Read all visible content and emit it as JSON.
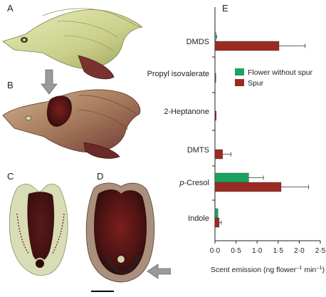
{
  "panels": {
    "a": "A",
    "b": "B",
    "c": "C",
    "d": "D",
    "e": "E"
  },
  "colors": {
    "without_spur": "#1aa35c",
    "spur": "#9b2a22",
    "axis": "#222222"
  },
  "chart_data": {
    "type": "bar",
    "orientation": "horizontal",
    "categories": [
      "DMDS",
      "Propyl isovalerate",
      "2-Heptanone",
      "DMTS",
      "p-Cresol",
      "Indole"
    ],
    "category_labels": [
      {
        "italic": "",
        "text": "DMDS"
      },
      {
        "italic": "",
        "text": "Propyl isovalerate"
      },
      {
        "italic": "",
        "text": "2-Heptanone"
      },
      {
        "italic": "",
        "text": "DMTS"
      },
      {
        "italic": "p",
        "text": "-Cresol"
      },
      {
        "italic": "",
        "text": "Indole"
      }
    ],
    "series": [
      {
        "name": "Flower without spur",
        "color": "#1aa35c",
        "values": [
          0.02,
          0.0,
          0.0,
          0.0,
          0.8,
          0.07
        ],
        "errors": [
          0.02,
          0.0,
          0.0,
          0.0,
          0.35,
          0.0
        ]
      },
      {
        "name": "Spur",
        "color": "#9b2a22",
        "values": [
          1.52,
          0.02,
          0.03,
          0.18,
          1.57,
          0.1
        ],
        "errors": [
          0.62,
          0.0,
          0.0,
          0.2,
          0.65,
          0.05
        ]
      }
    ],
    "xlim": [
      0,
      2.5
    ],
    "xticks": [
      0,
      0.5,
      1.0,
      1.5,
      2.0,
      2.5
    ],
    "xtick_labels": [
      "0·0",
      "0·5",
      "1·0",
      "1·5",
      "2·0",
      "2·5"
    ],
    "xlabel": {
      "prefix": "Scent emission (ng flower",
      "sup1": "–1",
      "mid": " min",
      "sup2": "–1",
      "suffix": ")"
    },
    "ylabel": "",
    "title": "",
    "legend_position": "upper-right",
    "grid": false
  }
}
